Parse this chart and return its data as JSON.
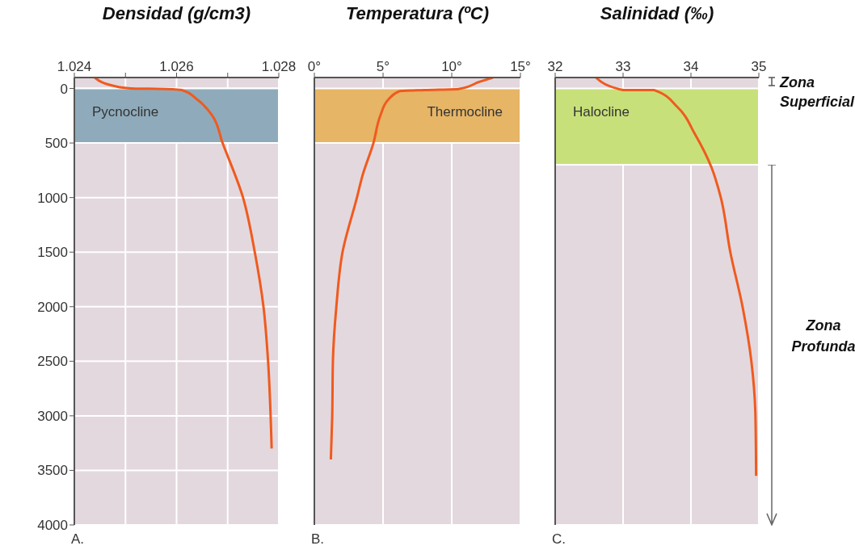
{
  "chart_data": [
    {
      "type": "line",
      "title": "Densidad (g/cm3)",
      "xlim": [
        1.024,
        1.028
      ],
      "xticks": [
        1.024,
        {
          "value": 1.025,
          "label": null
        },
        1.026,
        {
          "value": 1.027,
          "label": null
        },
        1.028
      ],
      "ylim": [
        4000,
        -100
      ],
      "yticks": [
        0,
        500,
        1000,
        1500,
        2000,
        2500,
        3000,
        3500,
        4000
      ],
      "grid": true,
      "marker": "none",
      "series": [
        {
          "color": "#f05a1e",
          "x": [
            1.0244,
            1.0248,
            1.0251,
            1.0258,
            1.0261,
            1.0264,
            1.0267,
            1.0269,
            1.0273,
            1.02753,
            1.0277,
            1.02779,
            1.02784,
            1.02786
          ],
          "values": [
            -100,
            -20,
            0,
            5,
            15,
            100,
            250,
            500,
            1000,
            1500,
            2000,
            2500,
            3000,
            3300
          ]
        }
      ],
      "bands": [
        {
          "axis": "y",
          "from": 0,
          "to": 500,
          "label": "Pycnocline",
          "color": "#8fabbb"
        }
      ],
      "annotations": [
        "A."
      ]
    },
    {
      "type": "line",
      "title": "Temperatura (ºC)",
      "xlim": [
        0,
        15
      ],
      "xticks": [
        {
          "value": 0,
          "label": "0°"
        },
        {
          "value": 5,
          "label": "5°"
        },
        {
          "value": 10,
          "label": "10°"
        },
        {
          "value": 15,
          "label": "15°"
        }
      ],
      "ylim": [
        4000,
        -100
      ],
      "yticks": [
        0,
        500,
        1000,
        1500,
        2000,
        2500,
        3000,
        3500,
        4000
      ],
      "grid": true,
      "marker": "none",
      "tick_labels": "x",
      "series": [
        {
          "color": "#f05a1e",
          "x": [
            13,
            12,
            10.5,
            8,
            6.2,
            5.4,
            4.8,
            4.3,
            3.5,
            3.1,
            2.05,
            1.6,
            1.35,
            1.3,
            1.2
          ],
          "values": [
            -100,
            -60,
            5,
            15,
            25,
            100,
            250,
            500,
            800,
            1000,
            1500,
            2000,
            2500,
            3000,
            3400
          ]
        }
      ],
      "bands": [
        {
          "axis": "y",
          "from": 0,
          "to": 500,
          "label": "Thermocline",
          "color": "#e6b566"
        }
      ],
      "annotations": [
        "B."
      ]
    },
    {
      "type": "line",
      "title": "Salinidad (‰)",
      "xlim": [
        32,
        35
      ],
      "xticks": [
        32,
        33,
        34,
        35
      ],
      "ylim": [
        4000,
        -100
      ],
      "yticks": [
        0,
        500,
        1000,
        1500,
        2000,
        2500,
        3000,
        3500,
        4000
      ],
      "grid": true,
      "marker": "none",
      "tick_labels": "x",
      "series": [
        {
          "color": "#f05a1e",
          "x": [
            32.6,
            33.0,
            33.46,
            33.8,
            34.06,
            34.3,
            34.44,
            34.58,
            34.76,
            34.89,
            34.95,
            34.96
          ],
          "values": [
            -100,
            15,
            15,
            170,
            420,
            720,
            1000,
            1500,
            2000,
            2500,
            3000,
            3550
          ]
        }
      ],
      "bands": [
        {
          "axis": "y",
          "from": 0,
          "to": 700,
          "label": "Halocline",
          "color": "#c8e07a"
        }
      ],
      "annotations": [
        "C.",
        "Zona Superficial",
        "Zona Profunda"
      ]
    }
  ]
}
